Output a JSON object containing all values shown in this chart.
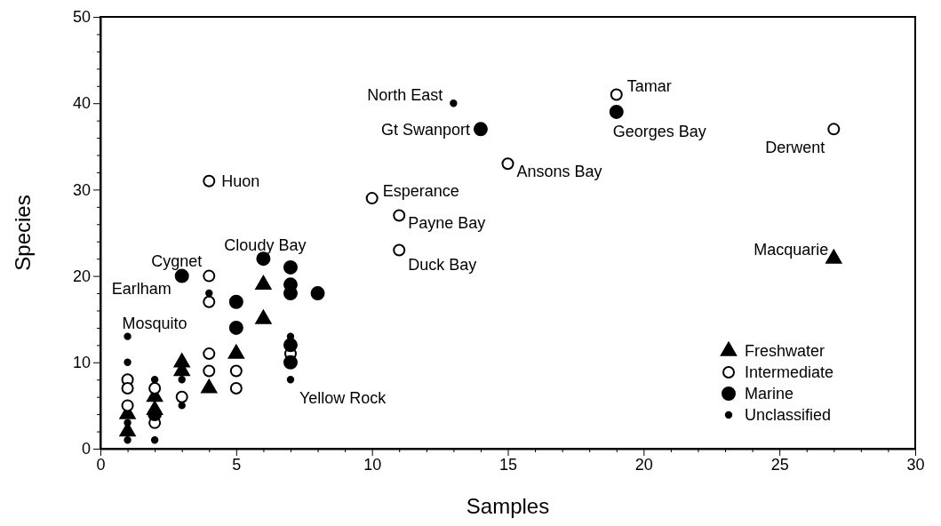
{
  "chart_data": {
    "type": "scatter",
    "xlabel": "Samples",
    "ylabel": "Species",
    "xlim": [
      0,
      30
    ],
    "ylim": [
      0,
      50
    ],
    "xticks": [
      0,
      5,
      10,
      15,
      20,
      25,
      30
    ],
    "yticks": [
      0,
      10,
      20,
      30,
      40,
      50
    ],
    "grid": false,
    "legend": "bottom right",
    "series": [
      {
        "name": "Freshwater",
        "color": "#000000",
        "marker": "triangle",
        "x": [
          1,
          1,
          2,
          2,
          3,
          3,
          4,
          5,
          6,
          6,
          27
        ],
        "values": [
          2,
          4,
          4.5,
          6,
          9,
          10,
          7,
          11,
          15,
          19,
          22
        ]
      },
      {
        "name": "Intermediate",
        "color": "#ffffff",
        "marker": "circle",
        "x": [
          1,
          1,
          1,
          2,
          2,
          3,
          4,
          4,
          4,
          4,
          4,
          5,
          5,
          7,
          10,
          11,
          11,
          15,
          19,
          27
        ],
        "values": [
          8,
          7,
          5,
          7,
          3,
          6,
          31,
          20,
          17,
          11,
          9,
          9,
          7,
          11,
          29,
          27,
          23,
          33,
          41,
          37
        ]
      },
      {
        "name": "Marine",
        "color": "#000000",
        "marker": "circle",
        "x": [
          2,
          3,
          5,
          5,
          6,
          7,
          7,
          7,
          7,
          7,
          8,
          14,
          19
        ],
        "values": [
          4,
          20,
          17,
          14,
          22,
          21,
          19,
          18,
          12,
          10,
          18,
          37,
          39
        ]
      },
      {
        "name": "Unclassified",
        "color": "#000000",
        "marker": "circle",
        "x": [
          1,
          1,
          1,
          1,
          2,
          2,
          3,
          3,
          4,
          7,
          7,
          13
        ],
        "values": [
          13,
          10,
          3,
          1,
          8,
          1,
          8,
          5,
          18,
          13,
          8,
          40
        ]
      }
    ],
    "annotations": [
      {
        "text": "Huon",
        "x": 4,
        "y": 31
      },
      {
        "text": "Esperance",
        "x": 10,
        "y": 29
      },
      {
        "text": "Payne Bay",
        "x": 11,
        "y": 27
      },
      {
        "text": "Duck Bay",
        "x": 11,
        "y": 23
      },
      {
        "text": "Ansons Bay",
        "x": 15,
        "y": 33
      },
      {
        "text": "Tamar",
        "x": 19,
        "y": 41
      },
      {
        "text": "Derwent",
        "x": 27,
        "y": 37
      },
      {
        "text": "Georges Bay",
        "x": 19,
        "y": 39
      },
      {
        "text": "Gt Swanport",
        "x": 14,
        "y": 37
      },
      {
        "text": "North East",
        "x": 13,
        "y": 40
      },
      {
        "text": "Macquarie",
        "x": 27,
        "y": 22
      },
      {
        "text": "Cloudy Bay",
        "x": 6,
        "y": 22
      },
      {
        "text": "Cygnet",
        "x": 4,
        "y": 20
      },
      {
        "text": "Earlham",
        "x": 3,
        "y": 20
      },
      {
        "text": "Mosquito",
        "x": 1,
        "y": 13
      },
      {
        "text": "Yellow Rock",
        "x": 7,
        "y": 8
      }
    ]
  }
}
